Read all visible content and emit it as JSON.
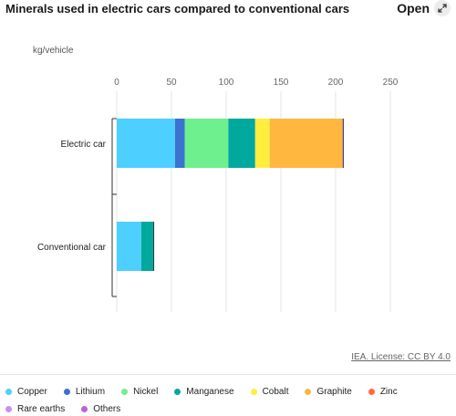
{
  "header": {
    "title": "Minerals used in electric cars compared to conventional cars",
    "open_label": "Open",
    "open_icon": "expand-arrow-icon"
  },
  "footer": {
    "license": "IEA. License: CC BY 4.0"
  },
  "chart_data": {
    "type": "bar",
    "orientation": "horizontal",
    "stacked": true,
    "unit_label": "kg/vehicle",
    "categories": [
      "Electric car",
      "Conventional car"
    ],
    "xlim": [
      0,
      250
    ],
    "xticks": [
      0,
      50,
      100,
      150,
      200,
      250
    ],
    "grid": true,
    "legend_position": "bottom",
    "series": [
      {
        "name": "Copper",
        "color": "#4dcfff",
        "values": [
          53.2,
          22.3
        ]
      },
      {
        "name": "Lithium",
        "color": "#3b73d0",
        "values": [
          8.9,
          0
        ]
      },
      {
        "name": "Nickel",
        "color": "#6ef08e",
        "values": [
          39.9,
          0
        ]
      },
      {
        "name": "Manganese",
        "color": "#00a99d",
        "values": [
          24.5,
          11.2
        ]
      },
      {
        "name": "Cobalt",
        "color": "#ffee3d",
        "values": [
          13.3,
          0
        ]
      },
      {
        "name": "Graphite",
        "color": "#ffb740",
        "values": [
          66.3,
          0
        ]
      },
      {
        "name": "Zinc",
        "color": "#ff6a3d",
        "values": [
          0.1,
          0
        ]
      },
      {
        "name": "Rare earths",
        "color": "#c98ef0",
        "values": [
          0.5,
          0
        ]
      },
      {
        "name": "Others",
        "color": "#b566d8",
        "values": [
          0.3,
          0.3
        ]
      }
    ]
  }
}
